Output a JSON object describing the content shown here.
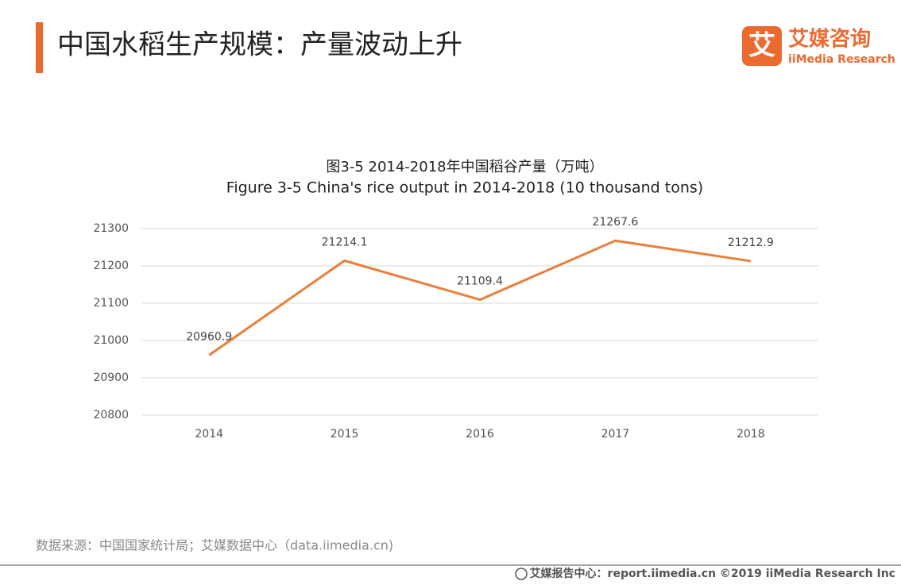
{
  "header": {
    "title": "中国水稻生产规模：产量波动上升"
  },
  "logo": {
    "mark": "艾",
    "name": "艾媒咨询",
    "sub": "iiMedia Research"
  },
  "chart_data": {
    "type": "line",
    "title": "图3-5 2014-2018年中国稻谷产量（万吨）",
    "subtitle": "Figure 3-5 China's rice output in 2014-2018 (10 thousand tons)",
    "categories": [
      "2014",
      "2015",
      "2016",
      "2017",
      "2018"
    ],
    "values": [
      20960.9,
      21214.1,
      21109.4,
      21267.6,
      21212.9
    ],
    "color": "#e8803a",
    "ylim": [
      20800,
      21300
    ],
    "yticks": [
      20800,
      20900,
      21000,
      21100,
      21200,
      21300
    ],
    "grid": true
  },
  "source": "数据来源：中国国家统计局；艾媒数据中心（data.iimedia.cn)",
  "footer": "艾媒报告中心：report.iimedia.cn  ©2019  iiMedia Research  Inc"
}
